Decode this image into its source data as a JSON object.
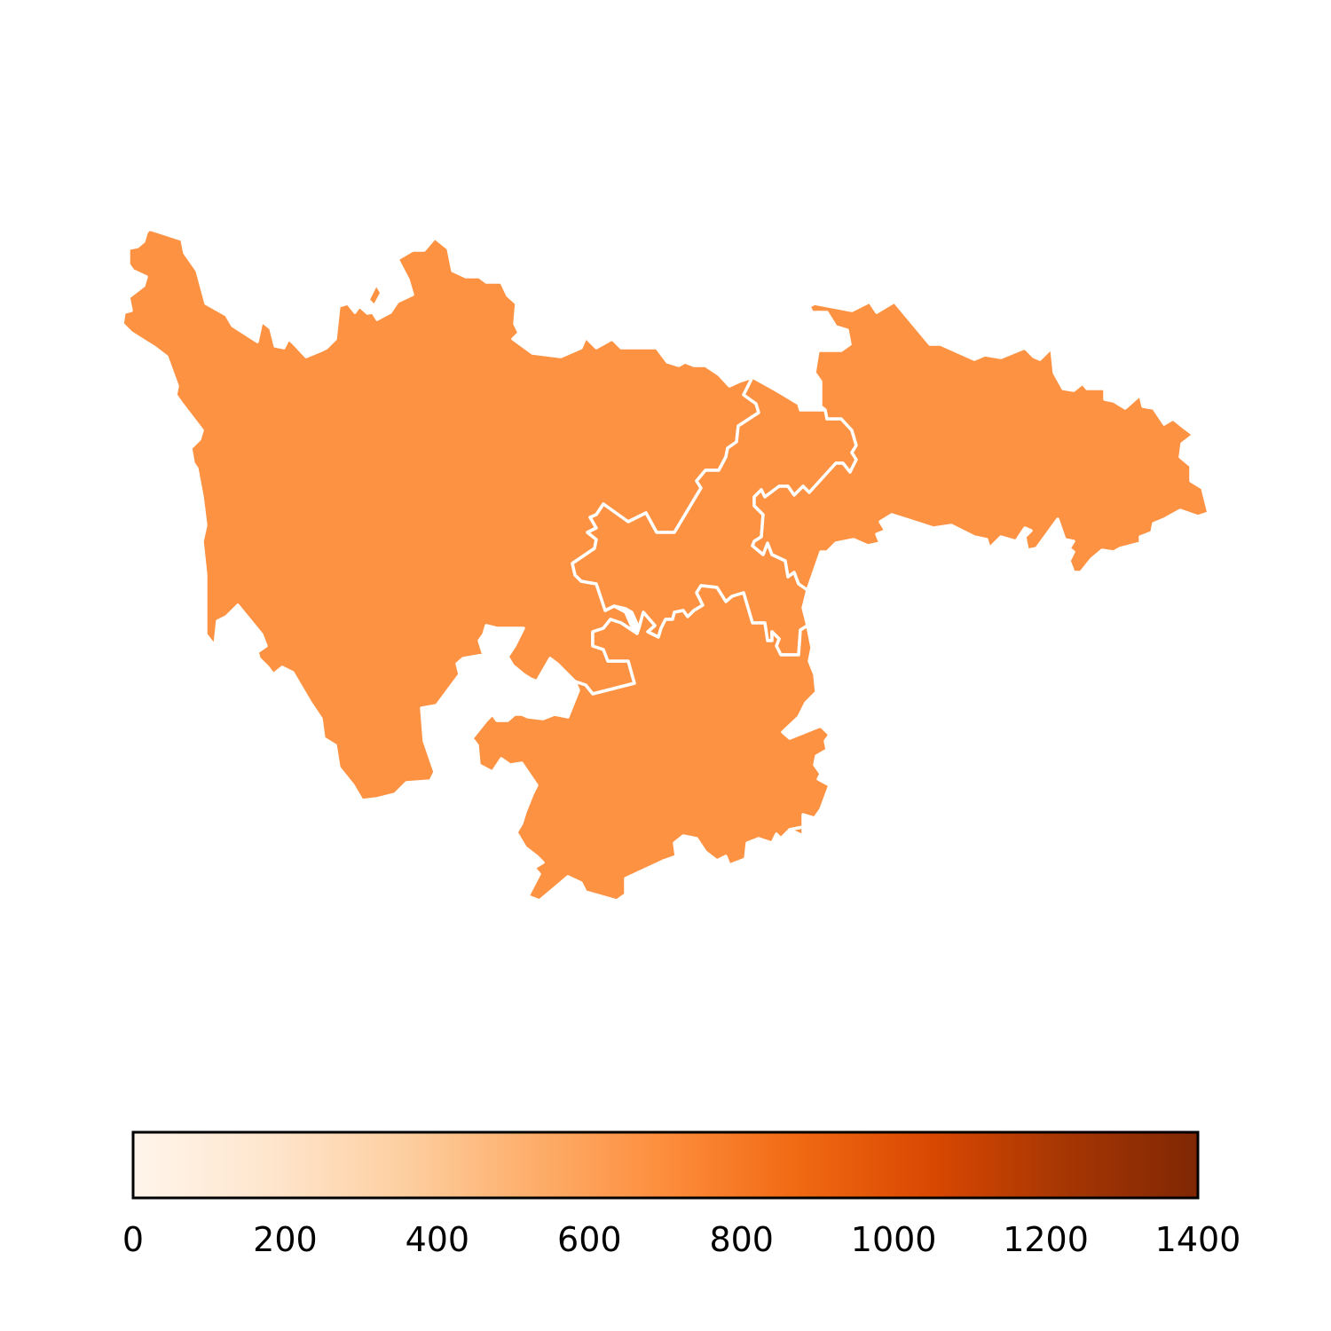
{
  "chart_data": {
    "type": "choropleth",
    "title": "",
    "regions": [
      {
        "name": "",
        "value": 730
      },
      {
        "name": "",
        "value": 730
      },
      {
        "name": "",
        "value": 730
      },
      {
        "name": "",
        "value": 730
      }
    ],
    "colorbar": {
      "colormap": "Oranges",
      "range": [
        0,
        1400
      ],
      "orientation": "horizontal",
      "ticks": [
        0,
        200,
        400,
        600,
        800,
        1000,
        1200,
        1400
      ],
      "tick_labels": [
        "0",
        "200",
        "400",
        "600",
        "800",
        "1000",
        "1200",
        "1400"
      ]
    },
    "fill_color": "#fd9243",
    "border_color": "#ffffff"
  }
}
